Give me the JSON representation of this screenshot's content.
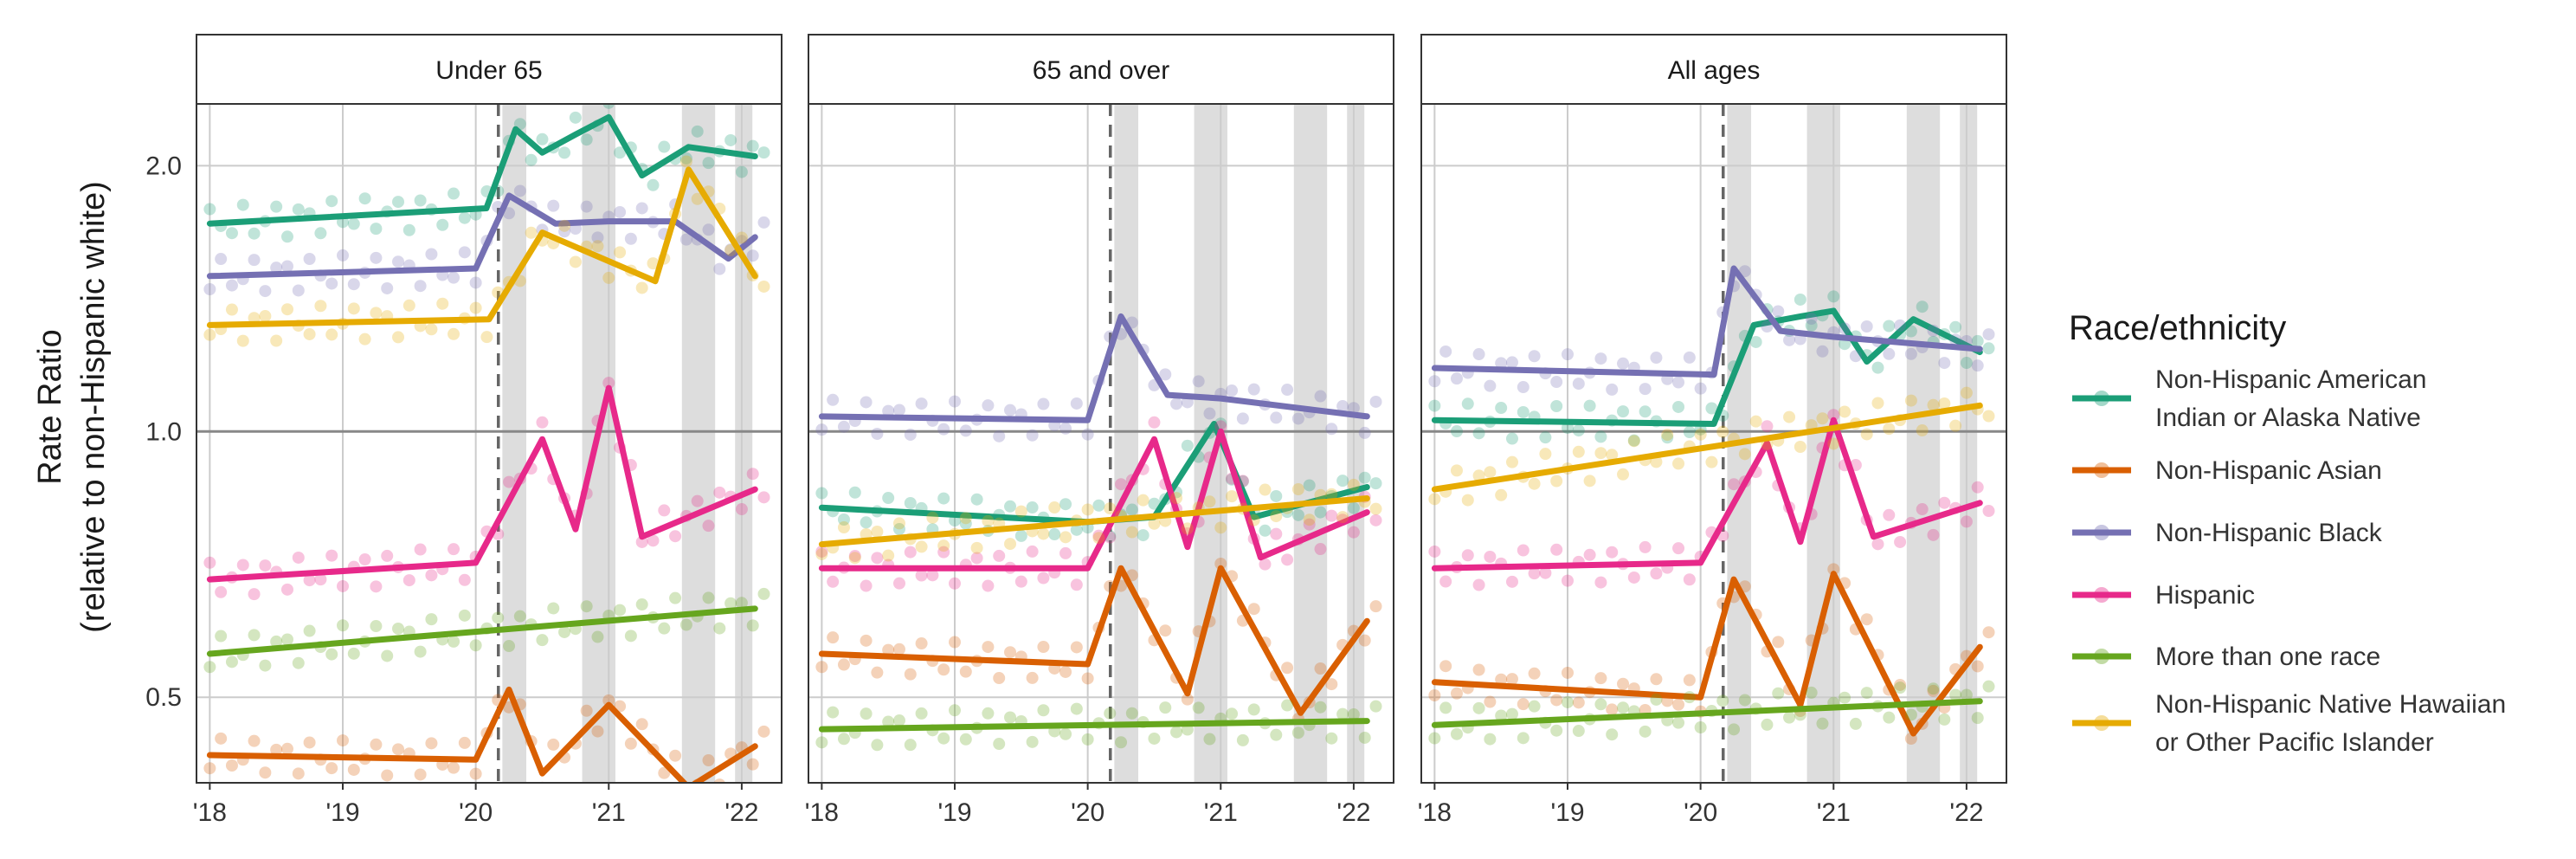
{
  "chart_data": {
    "type": "line",
    "ylabel_line1": "Rate Ratio",
    "ylabel_line2": "(relative to non-Hispanic white)",
    "yscale": "log",
    "ylim": [
      0.4,
      2.35
    ],
    "yticks": [
      0.5,
      1.0,
      2.0
    ],
    "ytick_labels": [
      "0.5",
      "1.0",
      "2.0"
    ],
    "reference_line": 1.0,
    "xlim": [
      2017.9,
      2022.3
    ],
    "xticks": [
      2018,
      2019,
      2020,
      2021,
      2022
    ],
    "xtick_labels": [
      "'18",
      "'19",
      "'20",
      "'21",
      "'22"
    ],
    "pandemic_start": 2020.17,
    "shaded_periods": [
      [
        2020.2,
        2020.38
      ],
      [
        2020.8,
        2021.05
      ],
      [
        2021.55,
        2021.8
      ],
      [
        2021.95,
        2022.08
      ]
    ],
    "legend_title": "Race/ethnicity",
    "legend": [
      {
        "lines": [
          "Non-Hispanic American",
          "Indian or Alaska Native"
        ],
        "color": "#1b9e77"
      },
      {
        "lines": [
          "Non-Hispanic Asian"
        ],
        "color": "#d95f02"
      },
      {
        "lines": [
          "Non-Hispanic Black"
        ],
        "color": "#7570b3"
      },
      {
        "lines": [
          "Hispanic"
        ],
        "color": "#e7298a"
      },
      {
        "lines": [
          "More than one race"
        ],
        "color": "#66a61e"
      },
      {
        "lines": [
          "Non-Hispanic Native Hawaiian",
          "or Other Pacific Islander"
        ],
        "color": "#e6ab02"
      }
    ],
    "panels": [
      {
        "title": "Under 65",
        "series": [
          {
            "name": "Non-Hispanic American Indian or Alaska Native",
            "color": "#1b9e77",
            "x": [
              2018.0,
              2020.08,
              2020.3,
              2020.5,
              2020.75,
              2021.0,
              2021.25,
              2021.6,
              2022.1
            ],
            "y": [
              1.72,
              1.79,
              2.2,
              2.07,
              2.17,
              2.27,
              1.95,
              2.1,
              2.05
            ]
          },
          {
            "name": "Non-Hispanic Asian",
            "color": "#d95f02",
            "x": [
              2018.0,
              2020.0,
              2020.25,
              2020.5,
              2021.0,
              2021.6,
              2022.1
            ],
            "y": [
              0.43,
              0.425,
              0.51,
              0.41,
              0.49,
              0.395,
              0.44
            ]
          },
          {
            "name": "Non-Hispanic Black",
            "color": "#7570b3",
            "x": [
              2018.0,
              2020.0,
              2020.25,
              2020.6,
              2021.0,
              2021.5,
              2021.9,
              2022.1
            ],
            "y": [
              1.5,
              1.53,
              1.85,
              1.72,
              1.73,
              1.73,
              1.57,
              1.66
            ]
          },
          {
            "name": "Hispanic",
            "color": "#e7298a",
            "x": [
              2018.0,
              2020.0,
              2020.5,
              2020.75,
              2021.0,
              2021.25,
              2022.1
            ],
            "y": [
              0.68,
              0.71,
              0.98,
              0.775,
              1.12,
              0.76,
              0.86
            ]
          },
          {
            "name": "More than one race",
            "color": "#66a61e",
            "x": [
              2018.0,
              2022.1
            ],
            "y": [
              0.56,
              0.63
            ]
          },
          {
            "name": "Non-Hispanic Native Hawaiian or Other Pacific Islander",
            "color": "#e6ab02",
            "x": [
              2018.0,
              2020.1,
              2020.5,
              2021.35,
              2021.6,
              2022.1
            ],
            "y": [
              1.32,
              1.34,
              1.68,
              1.48,
              1.98,
              1.5
            ]
          }
        ]
      },
      {
        "title": "65 and over",
        "series": [
          {
            "name": "Non-Hispanic American Indian or Alaska Native",
            "color": "#1b9e77",
            "x": [
              2018.0,
              2020.0,
              2020.5,
              2020.95,
              2021.25,
              2022.1
            ],
            "y": [
              0.82,
              0.79,
              0.8,
              1.02,
              0.8,
              0.865
            ]
          },
          {
            "name": "Non-Hispanic Asian",
            "color": "#d95f02",
            "x": [
              2018.0,
              2020.0,
              2020.25,
              2020.75,
              2021.0,
              2021.6,
              2022.1
            ],
            "y": [
              0.56,
              0.545,
              0.7,
              0.505,
              0.7,
              0.48,
              0.61
            ]
          },
          {
            "name": "Non-Hispanic Black",
            "color": "#7570b3",
            "x": [
              2018.0,
              2020.0,
              2020.25,
              2020.6,
              2021.0,
              2022.1
            ],
            "y": [
              1.04,
              1.03,
              1.35,
              1.1,
              1.09,
              1.04
            ]
          },
          {
            "name": "Hispanic",
            "color": "#e7298a",
            "x": [
              2018.0,
              2020.0,
              2020.5,
              2020.75,
              2021.0,
              2021.3,
              2022.1
            ],
            "y": [
              0.7,
              0.7,
              0.98,
              0.74,
              1.0,
              0.72,
              0.81
            ]
          },
          {
            "name": "More than one race",
            "color": "#66a61e",
            "x": [
              2018.0,
              2022.1
            ],
            "y": [
              0.46,
              0.47
            ]
          },
          {
            "name": "Non-Hispanic Native Hawaiian or Other Pacific Islander",
            "color": "#e6ab02",
            "x": [
              2018.0,
              2022.1
            ],
            "y": [
              0.745,
              0.84
            ]
          }
        ]
      },
      {
        "title": "All ages",
        "series": [
          {
            "name": "Non-Hispanic American Indian or Alaska Native",
            "color": "#1b9e77",
            "x": [
              2018.0,
              2020.1,
              2020.4,
              2020.75,
              2021.0,
              2021.25,
              2021.6,
              2022.1
            ],
            "y": [
              1.03,
              1.02,
              1.32,
              1.35,
              1.37,
              1.2,
              1.34,
              1.23
            ]
          },
          {
            "name": "Non-Hispanic Asian",
            "color": "#d95f02",
            "x": [
              2018.0,
              2020.0,
              2020.25,
              2020.75,
              2021.0,
              2021.6,
              2022.1
            ],
            "y": [
              0.52,
              0.5,
              0.68,
              0.49,
              0.69,
              0.455,
              0.57
            ]
          },
          {
            "name": "Non-Hispanic Black",
            "color": "#7570b3",
            "x": [
              2018.0,
              2020.1,
              2020.25,
              2020.6,
              2021.0,
              2022.1
            ],
            "y": [
              1.18,
              1.16,
              1.53,
              1.3,
              1.28,
              1.24
            ]
          },
          {
            "name": "Hispanic",
            "color": "#e7298a",
            "x": [
              2018.0,
              2020.0,
              2020.5,
              2020.75,
              2021.0,
              2021.3,
              2022.1
            ],
            "y": [
              0.7,
              0.71,
              0.97,
              0.75,
              1.03,
              0.76,
              0.83
            ]
          },
          {
            "name": "More than one race",
            "color": "#66a61e",
            "x": [
              2018.0,
              2022.1
            ],
            "y": [
              0.465,
              0.495
            ]
          },
          {
            "name": "Non-Hispanic Native Hawaiian or Other Pacific Islander",
            "color": "#e6ab02",
            "x": [
              2018.0,
              2022.1
            ],
            "y": [
              0.86,
              1.07
            ]
          }
        ]
      }
    ]
  }
}
